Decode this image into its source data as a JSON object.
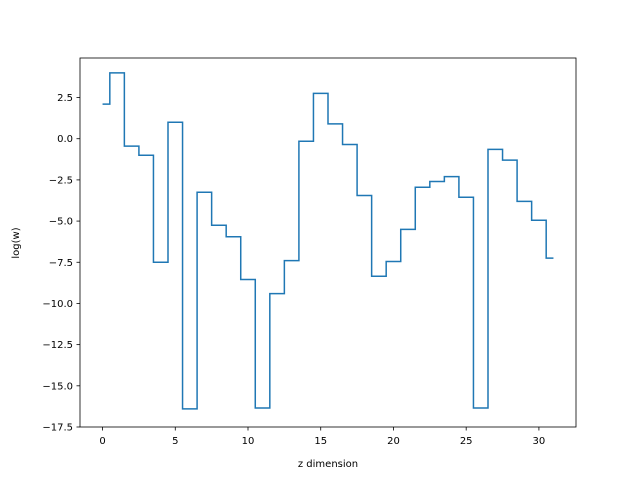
{
  "chart_data": {
    "type": "line",
    "drawstyle": "steps-mid",
    "xlabel": "z dimension",
    "ylabel": "log(w)",
    "xlim": [
      -1.55,
      32.55
    ],
    "ylim": [
      -17.5,
      4.9
    ],
    "xticks": [
      0,
      5,
      10,
      15,
      20,
      25,
      30
    ],
    "yticks": [
      -17.5,
      -15.0,
      -12.5,
      -10.0,
      -7.5,
      -5.0,
      -2.5,
      0.0,
      2.5
    ],
    "xtick_labels": [
      "0",
      "5",
      "10",
      "15",
      "20",
      "25",
      "30"
    ],
    "ytick_labels": [
      "−17.5",
      "−15.0",
      "−12.5",
      "−10.0",
      "−7.5",
      "−5.0",
      "−2.5",
      "0.0",
      "2.5"
    ],
    "grid": false,
    "series": [
      {
        "color": "#1f77b4",
        "x": [
          0,
          1,
          2,
          3,
          4,
          5,
          6,
          7,
          8,
          9,
          10,
          11,
          12,
          13,
          14,
          15,
          16,
          17,
          18,
          19,
          20,
          21,
          22,
          23,
          24,
          25,
          26,
          27,
          28,
          29,
          30,
          31
        ],
        "y": [
          2.1,
          4.0,
          -0.45,
          -1.0,
          -7.5,
          1.0,
          -16.4,
          -3.25,
          -5.25,
          -5.95,
          -8.55,
          -16.35,
          -9.4,
          -7.4,
          -0.15,
          2.75,
          0.9,
          -0.35,
          -3.45,
          -8.35,
          -7.45,
          -5.5,
          -2.95,
          -2.6,
          -2.3,
          -3.55,
          -16.35,
          -0.65,
          -1.3,
          -3.8,
          -4.95,
          -7.25
        ]
      }
    ]
  }
}
